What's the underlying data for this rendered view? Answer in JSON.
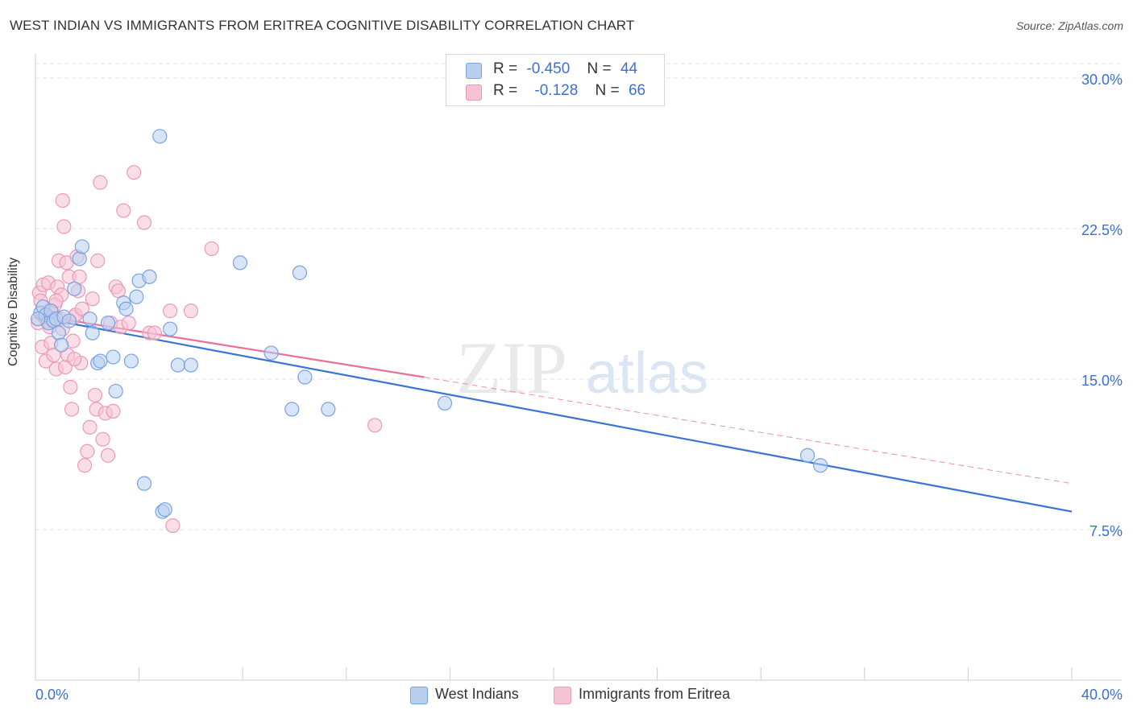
{
  "title": "WEST INDIAN VS IMMIGRANTS FROM ERITREA COGNITIVE DISABILITY CORRELATION CHART",
  "source": "Source: ZipAtlas.com",
  "watermark": {
    "zip": "ZIP",
    "atlas": "atlas"
  },
  "legend": {
    "series1": {
      "r_label": "R =",
      "r_value": "-0.450",
      "n_label": "N =",
      "n_value": "44"
    },
    "series2": {
      "r_label": "R =",
      "r_value": "-0.128",
      "n_label": "N =",
      "n_value": "66"
    }
  },
  "colors": {
    "blue_fill": "#b8cff0",
    "blue_stroke": "#7aa2e0",
    "blue_line": "#3a74d2",
    "pink_fill": "#f6c3d4",
    "pink_stroke": "#eb9ab6",
    "pink_line": "#e8709a",
    "axis_text": "#3b6fd6",
    "grid": "#e2e2e2"
  },
  "chart_data": {
    "type": "scatter",
    "title": "WEST INDIAN VS IMMIGRANTS FROM ERITREA COGNITIVE DISABILITY CORRELATION CHART",
    "xlabel": "",
    "ylabel": "Cognitive Disability",
    "xlim": [
      0,
      40
    ],
    "ylim": [
      0,
      31.5
    ],
    "x_tick_labels": [
      "0.0%",
      "40.0%"
    ],
    "y_ticks": [
      7.5,
      15.0,
      22.5,
      30.0
    ],
    "y_tick_labels": [
      "7.5%",
      "15.0%",
      "22.5%",
      "30.0%"
    ],
    "grid": true,
    "legend_position": "top-center",
    "series": [
      {
        "name": "West Indians",
        "r": -0.45,
        "n": 44,
        "trend": {
          "x": [
            0,
            40
          ],
          "y": [
            18.1,
            8.4
          ]
        },
        "points": [
          [
            0.2,
            18.3
          ],
          [
            0.3,
            18.6
          ],
          [
            0.4,
            18.2
          ],
          [
            0.5,
            17.8
          ],
          [
            0.6,
            18.4
          ],
          [
            0.7,
            17.9
          ],
          [
            0.8,
            18.0
          ],
          [
            0.9,
            17.3
          ],
          [
            1.0,
            16.7
          ],
          [
            1.1,
            18.1
          ],
          [
            1.3,
            17.9
          ],
          [
            1.5,
            19.5
          ],
          [
            1.7,
            21.0
          ],
          [
            1.8,
            21.6
          ],
          [
            2.1,
            18.0
          ],
          [
            2.2,
            17.3
          ],
          [
            2.4,
            15.8
          ],
          [
            2.5,
            15.9
          ],
          [
            2.8,
            17.8
          ],
          [
            3.0,
            16.1
          ],
          [
            3.1,
            14.4
          ],
          [
            3.4,
            18.8
          ],
          [
            3.5,
            18.5
          ],
          [
            3.7,
            15.9
          ],
          [
            3.9,
            19.1
          ],
          [
            4.0,
            19.9
          ],
          [
            4.2,
            9.8
          ],
          [
            4.4,
            20.1
          ],
          [
            4.8,
            27.1
          ],
          [
            4.9,
            8.4
          ],
          [
            5.0,
            8.5
          ],
          [
            5.2,
            17.5
          ],
          [
            5.5,
            15.7
          ],
          [
            6.0,
            15.7
          ],
          [
            7.9,
            20.8
          ],
          [
            9.1,
            16.3
          ],
          [
            9.9,
            13.5
          ],
          [
            10.2,
            20.3
          ],
          [
            10.4,
            15.1
          ],
          [
            11.3,
            13.5
          ],
          [
            15.8,
            13.8
          ],
          [
            29.8,
            11.2
          ],
          [
            30.3,
            10.7
          ],
          [
            0.1,
            18.0
          ]
        ]
      },
      {
        "name": "Immigrants from Eritrea",
        "r": -0.128,
        "n": 66,
        "trend": {
          "x": [
            0,
            15
          ],
          "y": [
            18.2,
            15.1
          ]
        },
        "trend_ext": {
          "x": [
            15,
            40
          ],
          "y": [
            15.1,
            9.8
          ]
        },
        "points": [
          [
            0.1,
            17.8
          ],
          [
            0.15,
            19.3
          ],
          [
            0.2,
            18.9
          ],
          [
            0.25,
            16.6
          ],
          [
            0.3,
            19.7
          ],
          [
            0.35,
            18.1
          ],
          [
            0.4,
            15.9
          ],
          [
            0.45,
            17.9
          ],
          [
            0.5,
            19.8
          ],
          [
            0.55,
            17.6
          ],
          [
            0.6,
            16.8
          ],
          [
            0.65,
            18.3
          ],
          [
            0.7,
            16.2
          ],
          [
            0.75,
            18.7
          ],
          [
            0.8,
            15.5
          ],
          [
            0.85,
            19.6
          ],
          [
            0.9,
            20.9
          ],
          [
            0.95,
            18.0
          ],
          [
            1.0,
            19.2
          ],
          [
            1.05,
            17.5
          ],
          [
            1.1,
            22.6
          ],
          [
            1.15,
            15.6
          ],
          [
            1.2,
            20.8
          ],
          [
            1.25,
            16.2
          ],
          [
            1.3,
            20.1
          ],
          [
            1.35,
            14.6
          ],
          [
            1.4,
            13.5
          ],
          [
            1.45,
            16.9
          ],
          [
            1.5,
            18.1
          ],
          [
            1.55,
            18.2
          ],
          [
            1.6,
            21.1
          ],
          [
            1.65,
            19.4
          ],
          [
            1.7,
            20.1
          ],
          [
            1.75,
            15.8
          ],
          [
            1.8,
            18.5
          ],
          [
            1.9,
            10.7
          ],
          [
            2.0,
            11.4
          ],
          [
            2.1,
            12.6
          ],
          [
            2.2,
            19.0
          ],
          [
            2.3,
            14.2
          ],
          [
            2.35,
            13.5
          ],
          [
            2.4,
            20.9
          ],
          [
            2.5,
            24.8
          ],
          [
            2.6,
            12.0
          ],
          [
            2.7,
            13.3
          ],
          [
            2.8,
            11.2
          ],
          [
            2.9,
            17.8
          ],
          [
            3.0,
            13.4
          ],
          [
            3.1,
            19.6
          ],
          [
            3.2,
            19.4
          ],
          [
            3.3,
            17.6
          ],
          [
            3.4,
            23.4
          ],
          [
            3.6,
            17.8
          ],
          [
            3.8,
            25.3
          ],
          [
            4.2,
            22.8
          ],
          [
            4.4,
            17.3
          ],
          [
            4.6,
            17.3
          ],
          [
            5.2,
            18.4
          ],
          [
            5.3,
            7.7
          ],
          [
            6.0,
            18.4
          ],
          [
            6.8,
            21.5
          ],
          [
            13.1,
            12.7
          ],
          [
            1.05,
            23.9
          ],
          [
            0.6,
            18.0
          ],
          [
            1.5,
            16.0
          ],
          [
            0.8,
            18.9
          ]
        ]
      }
    ]
  },
  "bottom_legend": [
    "West Indians",
    "Immigrants from Eritrea"
  ]
}
